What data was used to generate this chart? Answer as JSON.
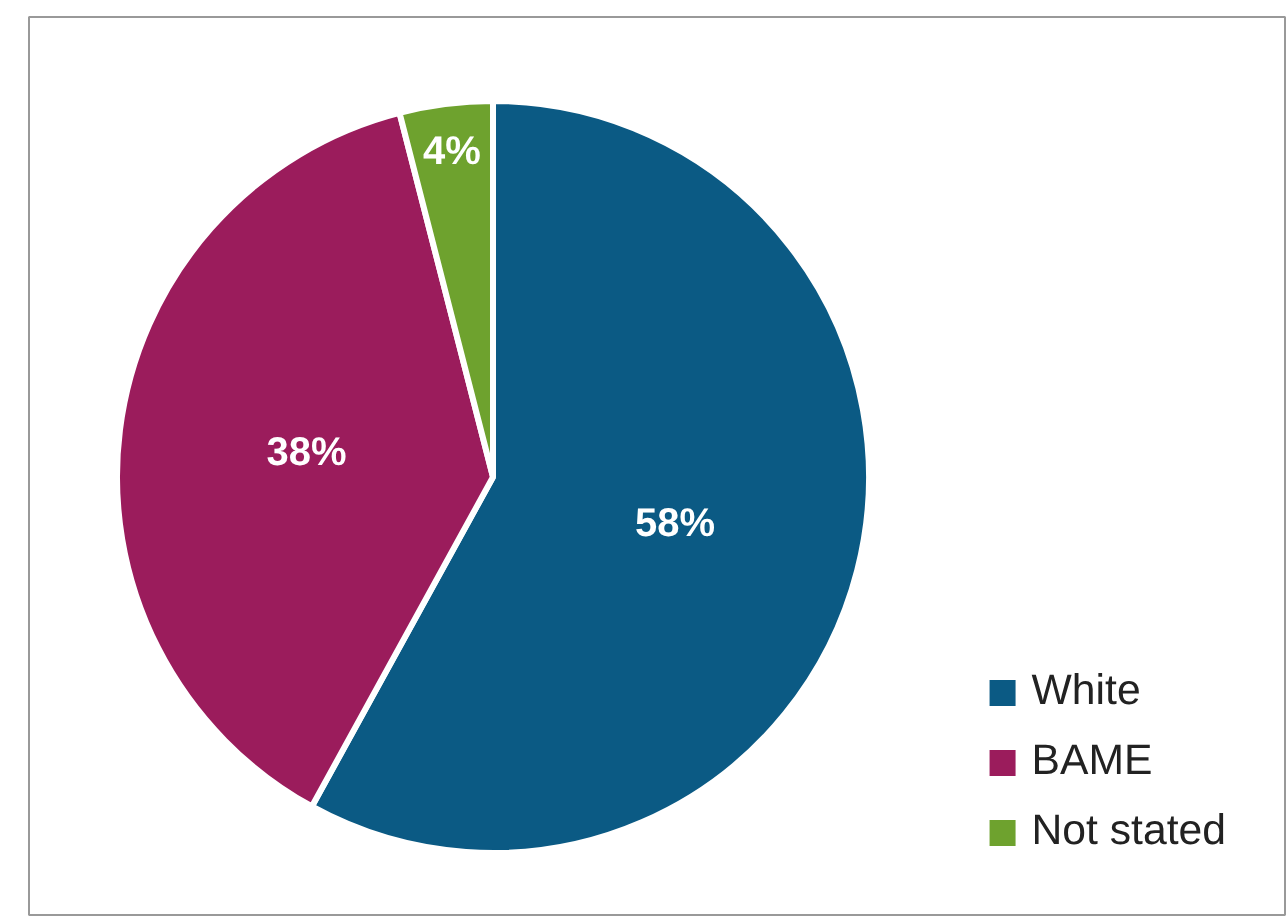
{
  "chart_data": {
    "type": "pie",
    "categories": [
      "White",
      "BAME",
      "Not stated"
    ],
    "values": [
      58,
      38,
      4
    ],
    "colors": [
      "#0b5a84",
      "#9b1c5c",
      "#6ea22e"
    ],
    "value_labels": [
      "58%",
      "38%",
      "4%"
    ],
    "legend": "bottom right"
  }
}
